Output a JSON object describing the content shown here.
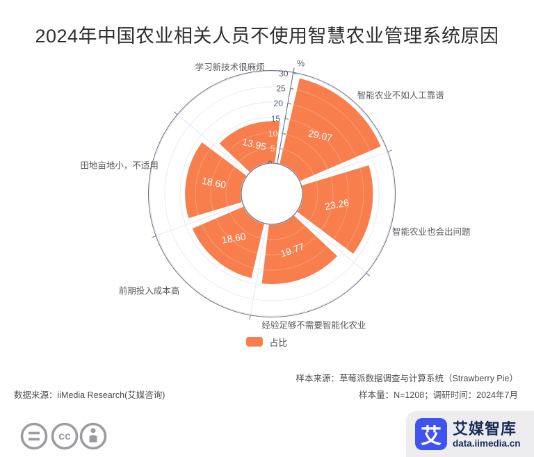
{
  "title": "2024年中国农业相关人员不使用智慧农业管理系统原因",
  "chart_data": {
    "type": "rose",
    "unit_label": "%",
    "categories": [
      "智能农业不如人工靠谱",
      "智能农业也会出问题",
      "经验足够不需要智能化农业",
      "前期投入成本高",
      "田地亩地小，不适用",
      "学习新技术很麻烦"
    ],
    "values": [
      29.07,
      23.26,
      19.77,
      18.6,
      18.6,
      13.95
    ],
    "value_labels": [
      "29.07",
      "23.26",
      "19.77",
      "18.60",
      "18.60",
      "13.95"
    ],
    "series_name": "占比",
    "radial_ticks": [
      0,
      5,
      10,
      15,
      20,
      25,
      30
    ],
    "rlim": [
      0,
      30
    ],
    "start_angle": 80,
    "grid_on": true,
    "legend_position": "bottom",
    "label_rotations": [
      12,
      -10,
      -19,
      -10,
      11,
      13
    ],
    "colors": {
      "sector": "#F87E4D",
      "grid": "#E1E7F2",
      "axis": "#6E7079",
      "tick_label_dark": "#555A66",
      "tick_label_light": "rgba(255,255,255,0.82)",
      "value_label": "#FFFFFF",
      "category_label": "#595959"
    }
  },
  "legend": {
    "label": "占比",
    "color": "#F87E4D"
  },
  "footer": {
    "source_left": "数据来源：iiMedia Research(艾媒咨询)",
    "sample_source": "样本来源：草莓派数据调查与计算系统（Strawberry Pie）",
    "sample_info": "样本量：N=1208；调研时间：2024年7月"
  },
  "license": {
    "cc_text": "cc"
  },
  "branding": {
    "logo_char": "艾",
    "logo_name": "艾媒智库",
    "logo_url": "data.iimedia.cn",
    "logo_blue": "#4053EE",
    "text_color": "#1B2B57",
    "card_bg": "#EDEDEF"
  }
}
